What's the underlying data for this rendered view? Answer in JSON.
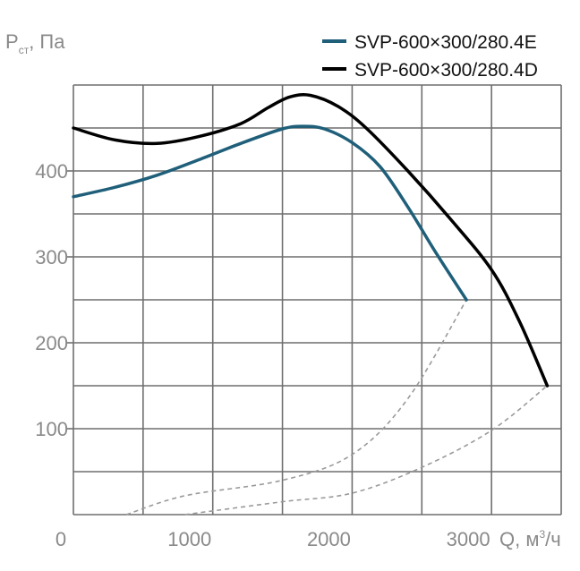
{
  "chart_data": {
    "type": "line",
    "ylabel": {
      "main": "P",
      "sub": "ст",
      "unit": ", Па"
    },
    "xlabel": {
      "main": "Q, м",
      "sup": "3",
      "unit": "/ч"
    },
    "x_ticks": [
      "0",
      "1000",
      "2000",
      "3000"
    ],
    "y_ticks": [
      "100",
      "200",
      "300",
      "400"
    ],
    "xlim": [
      0,
      3500
    ],
    "ylim": [
      0,
      500
    ],
    "grid": true,
    "legend_position": "top-right",
    "colors": {
      "grid": "#6f6f6f",
      "tick_text": "#8a8a8a",
      "dashed": "#9a9a9a"
    },
    "series": [
      {
        "name": "SVP-600×300/280.4E",
        "color": "#1f5f7a",
        "points": [
          [
            0,
            370
          ],
          [
            300,
            381
          ],
          [
            600,
            395
          ],
          [
            900,
            413
          ],
          [
            1200,
            432
          ],
          [
            1500,
            449
          ],
          [
            1650,
            452
          ],
          [
            1800,
            449
          ],
          [
            2000,
            433
          ],
          [
            2200,
            405
          ],
          [
            2400,
            358
          ],
          [
            2600,
            305
          ],
          [
            2820,
            250
          ]
        ]
      },
      {
        "name": "SVP-600×300/280.4D",
        "color": "#000000",
        "points": [
          [
            0,
            450
          ],
          [
            300,
            436
          ],
          [
            600,
            432
          ],
          [
            900,
            440
          ],
          [
            1200,
            455
          ],
          [
            1400,
            474
          ],
          [
            1550,
            486
          ],
          [
            1700,
            488
          ],
          [
            1900,
            475
          ],
          [
            2100,
            450
          ],
          [
            2400,
            400
          ],
          [
            2700,
            345
          ],
          [
            3000,
            285
          ],
          [
            3200,
            225
          ],
          [
            3400,
            150
          ]
        ]
      }
    ],
    "system_curves": [
      {
        "style": "dashed",
        "points": [
          [
            380,
            0
          ],
          [
            800,
            22
          ],
          [
            1500,
            40
          ],
          [
            2000,
            70
          ],
          [
            2400,
            135
          ],
          [
            2820,
            250
          ]
        ]
      },
      {
        "style": "dashed",
        "points": [
          [
            800,
            0
          ],
          [
            1500,
            15
          ],
          [
            2000,
            25
          ],
          [
            2500,
            55
          ],
          [
            3000,
            98
          ],
          [
            3400,
            150
          ]
        ]
      }
    ]
  }
}
